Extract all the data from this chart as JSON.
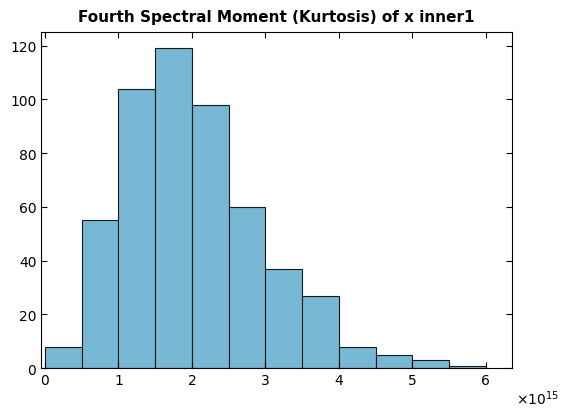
{
  "title": "Fourth Spectral Moment (Kurtosis) of x inner1",
  "bar_heights": [
    8,
    55,
    104,
    119,
    98,
    60,
    37,
    27,
    8,
    5,
    3,
    1
  ],
  "bin_edges_scaled": [
    0.0,
    0.5,
    1.0,
    1.5,
    2.0,
    2.5,
    3.0,
    3.5,
    4.0,
    4.5,
    5.0,
    5.5,
    6.0
  ],
  "scale": 1000000000000000.0,
  "bar_color": "#77b8d4",
  "bar_edge_color": "#1a1a1a",
  "bar_linewidth": 0.8,
  "xlim_scaled": [
    -0.05,
    6.35
  ],
  "ylim": [
    0,
    125
  ],
  "yticks": [
    0,
    20,
    40,
    60,
    80,
    100,
    120
  ],
  "xticks_scaled": [
    0,
    1,
    2,
    3,
    4,
    5,
    6
  ],
  "title_fontsize": 11,
  "tick_fontsize": 10,
  "background_color": "#ffffff"
}
